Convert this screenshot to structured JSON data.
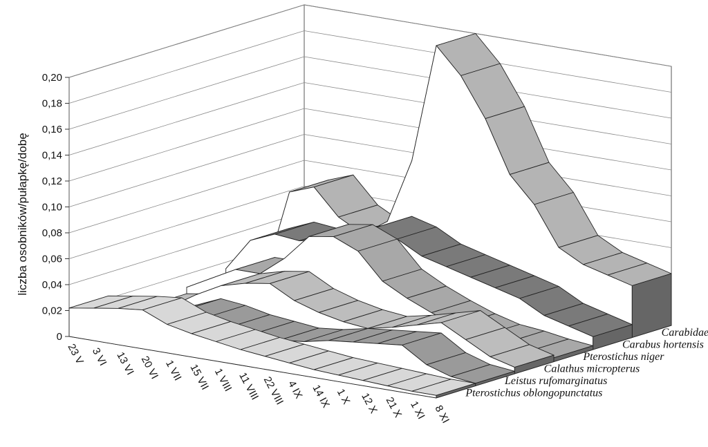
{
  "chart_data": {
    "type": "area",
    "ylabel": "liczba osobników/pułapkę/dobę",
    "ylim": [
      0,
      0.2
    ],
    "yticks": [
      "0",
      "0,02",
      "0,04",
      "0,06",
      "0,08",
      "0,10",
      "0,12",
      "0,14",
      "0,16",
      "0,18",
      "0,20"
    ],
    "categories": [
      "23 V",
      "3 VI",
      "13 VI",
      "20 VI",
      "1 VII",
      "15 VII",
      "1 VIII",
      "11 VIII",
      "22 VIII",
      "4 IX",
      "14 IX",
      "1 X",
      "12 X",
      "21 X",
      "1 XI",
      "8 XI"
    ],
    "series": [
      {
        "name": "Pterostichus oblongopunctatus",
        "color": "#d8d8d8",
        "values": [
          0.022,
          0.025,
          0.028,
          0.03,
          0.022,
          0.018,
          0.015,
          0.012,
          0.01,
          0.008,
          0.006,
          0.005,
          0.004,
          0.003,
          0.002,
          0.002
        ]
      },
      {
        "name": "Leistus rufomarginatus",
        "color": "#9a9a9a",
        "values": [
          0.002,
          0.004,
          0.012,
          0.02,
          0.018,
          0.014,
          0.012,
          0.01,
          0.012,
          0.016,
          0.018,
          0.02,
          0.022,
          0.01,
          0.004,
          0.002
        ]
      },
      {
        "name": "Calathus micropterus",
        "color": "#bdbdbd",
        "values": [
          0.005,
          0.008,
          0.02,
          0.03,
          0.035,
          0.038,
          0.028,
          0.022,
          0.018,
          0.016,
          0.02,
          0.025,
          0.03,
          0.02,
          0.01,
          0.005
        ]
      },
      {
        "name": "Pterostichus niger",
        "color": "#a8a8a8",
        "values": [
          0.01,
          0.02,
          0.03,
          0.03,
          0.045,
          0.065,
          0.068,
          0.06,
          0.04,
          0.03,
          0.022,
          0.015,
          0.01,
          0.008,
          0.005,
          0.003
        ]
      },
      {
        "name": "Carabus hortensis",
        "color": "#7a7a7a",
        "values": [
          0.015,
          0.04,
          0.048,
          0.046,
          0.05,
          0.055,
          0.065,
          0.06,
          0.05,
          0.045,
          0.04,
          0.035,
          0.03,
          0.02,
          0.015,
          0.01
        ]
      },
      {
        "name": "Carabidae",
        "color": "#b4b4b4",
        "values": [
          0.0,
          0.068,
          0.075,
          0.055,
          0.045,
          0.058,
          0.108,
          0.2,
          0.18,
          0.15,
          0.11,
          0.09,
          0.06,
          0.05,
          0.045,
          0.04
        ]
      }
    ],
    "grid": true
  }
}
